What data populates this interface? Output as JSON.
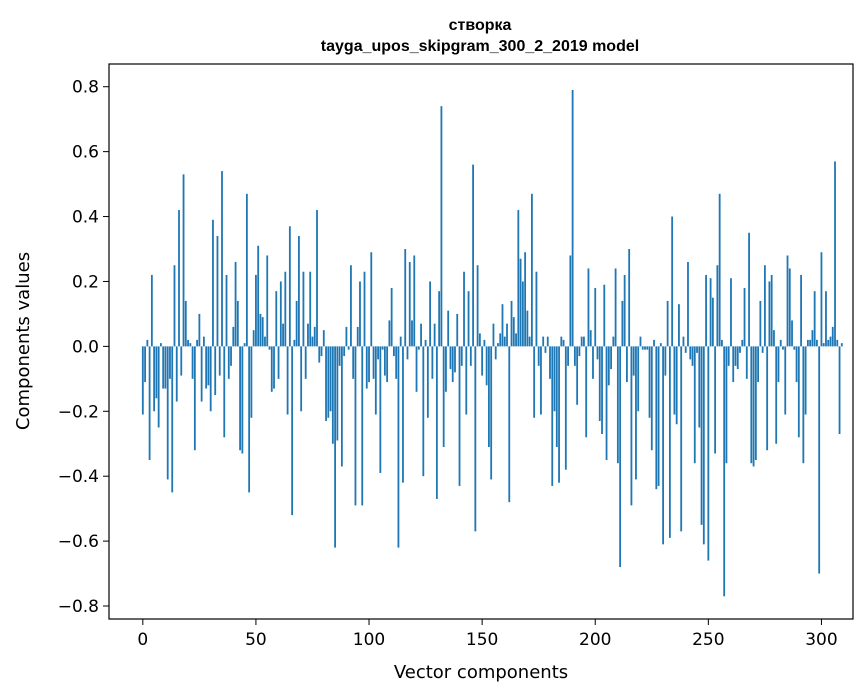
{
  "chart_data": {
    "type": "bar",
    "title": "створка",
    "subtitle": "tayga_upos_skipgram_300_2_2019 model",
    "xlabel": "Vector components",
    "ylabel": "Components values",
    "xlim": [
      -14.95,
      313.95
    ],
    "ylim": [
      -0.84,
      0.87
    ],
    "xticks": [
      0,
      50,
      100,
      150,
      200,
      250,
      300
    ],
    "xtick_labels": [
      "0",
      "50",
      "100",
      "150",
      "200",
      "250",
      "300"
    ],
    "yticks": [
      -0.8,
      -0.6,
      -0.4,
      -0.2,
      0.0,
      0.2,
      0.4,
      0.6,
      0.8
    ],
    "ytick_labels": [
      "−0.8",
      "−0.6",
      "−0.4",
      "−0.2",
      "0.0",
      "0.2",
      "0.4",
      "0.6",
      "0.8"
    ],
    "bar_color": "#1f77b4",
    "grid": false,
    "values": [
      -0.21,
      -0.11,
      0.02,
      -0.35,
      0.22,
      -0.2,
      -0.16,
      -0.25,
      0.01,
      -0.13,
      -0.13,
      -0.41,
      -0.1,
      -0.45,
      0.25,
      -0.17,
      0.42,
      -0.09,
      0.53,
      0.14,
      0.02,
      0.01,
      -0.1,
      -0.32,
      0.02,
      0.1,
      -0.17,
      0.03,
      -0.13,
      -0.12,
      -0.2,
      0.39,
      -0.15,
      0.34,
      -0.09,
      0.54,
      -0.28,
      0.22,
      -0.1,
      -0.06,
      0.06,
      0.26,
      0.14,
      -0.32,
      -0.33,
      0.01,
      0.47,
      -0.45,
      -0.22,
      0.05,
      0.22,
      0.31,
      0.1,
      0.09,
      0.03,
      0.28,
      -0.01,
      -0.14,
      -0.13,
      0.17,
      -0.1,
      0.2,
      0.07,
      0.23,
      -0.21,
      0.37,
      -0.52,
      0.02,
      0.14,
      0.34,
      -0.2,
      0.23,
      -0.1,
      0.07,
      0.23,
      0.03,
      0.06,
      0.42,
      -0.05,
      -0.03,
      0.05,
      -0.23,
      -0.22,
      -0.2,
      -0.3,
      -0.62,
      -0.29,
      -0.06,
      -0.37,
      -0.03,
      0.06,
      -0.01,
      0.25,
      -0.1,
      -0.49,
      0.06,
      0.2,
      -0.49,
      0.23,
      -0.13,
      -0.11,
      0.29,
      -0.1,
      -0.21,
      -0.04,
      -0.39,
      -0.01,
      -0.09,
      -0.11,
      0.08,
      0.18,
      -0.03,
      -0.1,
      -0.62,
      0.03,
      -0.42,
      0.3,
      -0.04,
      0.26,
      0.08,
      0.28,
      -0.14,
      -0.01,
      0.07,
      -0.4,
      0.02,
      -0.22,
      0.2,
      -0.1,
      0.07,
      -0.47,
      0.17,
      0.74,
      -0.31,
      -0.14,
      0.11,
      -0.07,
      -0.11,
      -0.08,
      0.1,
      -0.43,
      -0.06,
      0.23,
      -0.21,
      0.17,
      -0.06,
      0.56,
      -0.57,
      0.25,
      0.04,
      -0.09,
      0.02,
      -0.12,
      -0.31,
      -0.41,
      0.07,
      -0.04,
      0.01,
      0.04,
      0.13,
      0.03,
      0.07,
      -0.48,
      0.14,
      0.09,
      0.04,
      0.42,
      0.27,
      0.2,
      0.29,
      0.11,
      0.03,
      0.47,
      -0.22,
      0.23,
      -0.06,
      -0.21,
      0.03,
      -0.02,
      0.03,
      -0.1,
      -0.43,
      -0.2,
      -0.31,
      -0.42,
      0.03,
      0.02,
      -0.38,
      -0.06,
      0.28,
      0.79,
      -0.06,
      -0.18,
      -0.03,
      0.03,
      0.03,
      -0.28,
      0.24,
      0.05,
      -0.1,
      0.18,
      -0.04,
      -0.23,
      -0.27,
      0.19,
      -0.35,
      -0.12,
      -0.07,
      0.03,
      0.24,
      -0.36,
      -0.68,
      0.14,
      0.22,
      -0.11,
      0.3,
      -0.49,
      -0.09,
      -0.41,
      -0.2,
      0.03,
      -0.01,
      -0.01,
      -0.01,
      -0.22,
      -0.32,
      0.02,
      -0.44,
      -0.43,
      0.01,
      -0.61,
      -0.09,
      0.14,
      -0.59,
      0.4,
      -0.21,
      -0.24,
      0.13,
      -0.57,
      0.03,
      -0.02,
      0.26,
      -0.04,
      -0.06,
      -0.36,
      -0.02,
      -0.25,
      -0.55,
      -0.61,
      0.22,
      -0.66,
      0.21,
      0.15,
      -0.33,
      0.25,
      0.47,
      0.02,
      -0.77,
      -0.36,
      -0.06,
      0.21,
      -0.11,
      -0.06,
      -0.07,
      -0.02,
      0.02,
      0.18,
      -0.1,
      0.35,
      -0.36,
      -0.37,
      -0.35,
      -0.11,
      0.14,
      -0.02,
      0.25,
      -0.32,
      0.2,
      0.22,
      0.05,
      -0.3,
      -0.11,
      0.02,
      -0.01,
      -0.21,
      0.28,
      0.24,
      0.08,
      -0.01,
      -0.11,
      -0.28,
      0.22,
      -0.36,
      -0.21,
      0.02,
      0.02,
      0.05,
      0.17,
      0.02,
      -0.7,
      0.29,
      0.01,
      0.17,
      0.02,
      0.03,
      0.06,
      0.57,
      0.02,
      -0.27,
      0.01
    ]
  }
}
